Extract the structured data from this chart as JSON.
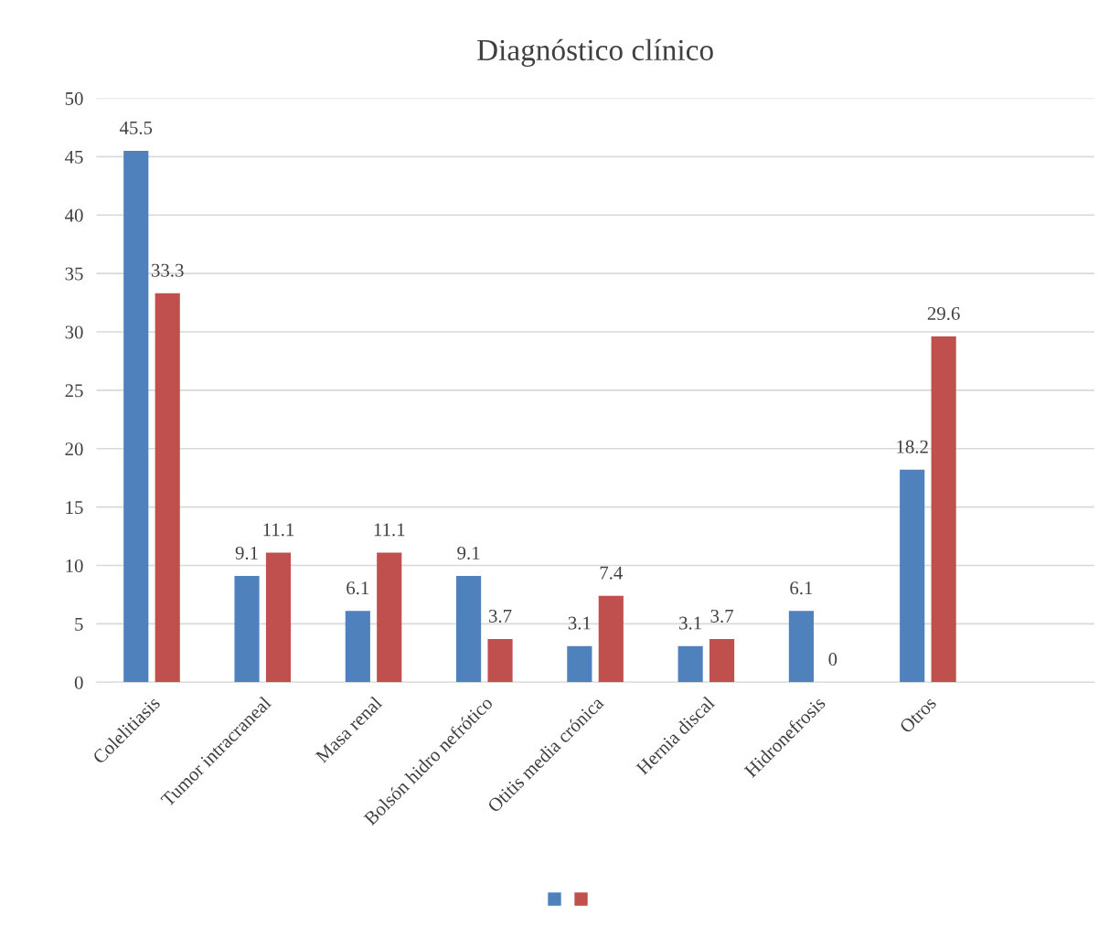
{
  "chart_data": {
    "type": "bar",
    "title": "Diagnóstico clínico",
    "categories": [
      "Colelitiasis",
      "Tumor intracraneal",
      "Masa renal",
      "Bolsón hidro nefrótico",
      "Otitis media crónica",
      "Hernia discal",
      "Hidronefrosis",
      "Otros",
      null
    ],
    "series": [
      {
        "color": "#4f81bd",
        "values": [
          45.5,
          9.1,
          6.1,
          9.1,
          3.1,
          3.1,
          6.1,
          18.2,
          null
        ]
      },
      {
        "color": "#c0504d",
        "values": [
          33.3,
          11.1,
          11.1,
          3.7,
          7.4,
          3.7,
          0,
          29.6,
          null
        ]
      }
    ],
    "ylim": [
      0,
      50
    ],
    "yticks": [
      0,
      5,
      10,
      15,
      20,
      25,
      30,
      35,
      40,
      45,
      50
    ],
    "grid": "y",
    "data_labels": true
  }
}
